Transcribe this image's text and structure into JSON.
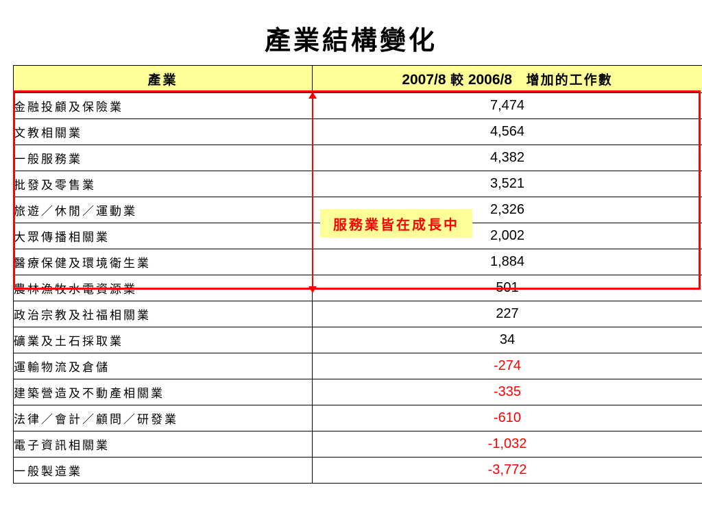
{
  "title": "產業結構變化",
  "table": {
    "header": {
      "industry": "產業",
      "period_a": "2007/8",
      "vs": "較",
      "period_b": "2006/8",
      "suffix": "增加的工作數"
    },
    "rows": [
      {
        "industry": "金融投顧及保險業",
        "value": "7,474"
      },
      {
        "industry": "文教相關業",
        "value": "4,564"
      },
      {
        "industry": "一般服務業",
        "value": "4,382"
      },
      {
        "industry": "批發及零售業",
        "value": "3,521"
      },
      {
        "industry": "旅遊／休閒／運動業",
        "value": "2,326"
      },
      {
        "industry": "大眾傳播相關業",
        "value": "2,002"
      },
      {
        "industry": "醫療保健及環境衛生業",
        "value": "1,884"
      },
      {
        "industry": "農林漁牧水電資源業",
        "value": "501"
      },
      {
        "industry": "政治宗教及社福相關業",
        "value": "227"
      },
      {
        "industry": "礦業及土石採取業",
        "value": "34"
      },
      {
        "industry": "運輸物流及倉儲",
        "value": "-274"
      },
      {
        "industry": "建築營造及不動產相關業",
        "value": "-335"
      },
      {
        "industry": "法律／會計／顧問／研發業",
        "value": "-610"
      },
      {
        "industry": "電子資訊相關業",
        "value": "-1,032"
      },
      {
        "industry": "一般製造業",
        "value": "-3,772"
      }
    ]
  },
  "annotation": {
    "label": "服務業皆在成長中",
    "color": "#ff0000",
    "background": "#ffff99"
  },
  "colors": {
    "header_bg": "#ffff99",
    "negative": "#ff0000"
  }
}
